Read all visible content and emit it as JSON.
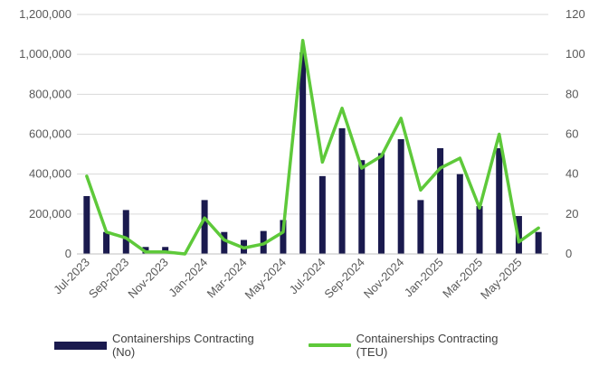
{
  "chart_data": {
    "type": "bar",
    "title": "",
    "xlabel": "",
    "ylabel": "",
    "categories": [
      "Jul-2023",
      "Aug-2023",
      "Sep-2023",
      "Oct-2023",
      "Nov-2023",
      "Dec-2023",
      "Jan-2024",
      "Feb-2024",
      "Mar-2024",
      "Apr-2024",
      "May-2024",
      "Jun-2024",
      "Jul-2024",
      "Aug-2024",
      "Sep-2024",
      "Oct-2024",
      "Nov-2024",
      "Dec-2024",
      "Jan-2025",
      "Feb-2025",
      "Mar-2025",
      "Apr-2025",
      "May-2025",
      "Jun-2025"
    ],
    "x_tick_labels": [
      "Jul-2023",
      "Sep-2023",
      "Nov-2023",
      "Jan-2024",
      "Mar-2024",
      "May-2024",
      "Jul-2024",
      "Sep-2024",
      "Nov-2024",
      "Jan-2025",
      "Mar-2025",
      "May-2025"
    ],
    "series": [
      {
        "name": "Containerships Contracting (No)",
        "kind": "bar",
        "axis": "left",
        "color": "#1a1a4e",
        "values": [
          290000,
          110000,
          220000,
          35000,
          35000,
          0,
          270000,
          110000,
          70000,
          115000,
          170000,
          1010000,
          390000,
          630000,
          470000,
          505000,
          575000,
          270000,
          530000,
          400000,
          240000,
          530000,
          190000,
          110000
        ]
      },
      {
        "name": "Containerships Contracting (TEU)",
        "kind": "line",
        "axis": "right",
        "color": "#5ec93a",
        "values": [
          39,
          11,
          8,
          1,
          1,
          0,
          18,
          7,
          3,
          5,
          11,
          107,
          46,
          73,
          43,
          49,
          68,
          32,
          43,
          48,
          23,
          60,
          6,
          13
        ]
      }
    ],
    "y_left": {
      "min": 0,
      "max": 1200000,
      "ticks": [
        "0",
        "200,000",
        "400,000",
        "600,000",
        "800,000",
        "1,000,000",
        "1,200,000"
      ]
    },
    "y_right": {
      "min": 0,
      "max": 120,
      "ticks": [
        "0",
        "20",
        "40",
        "60",
        "80",
        "100",
        "120"
      ]
    },
    "grid": true,
    "legend_position": "bottom"
  }
}
